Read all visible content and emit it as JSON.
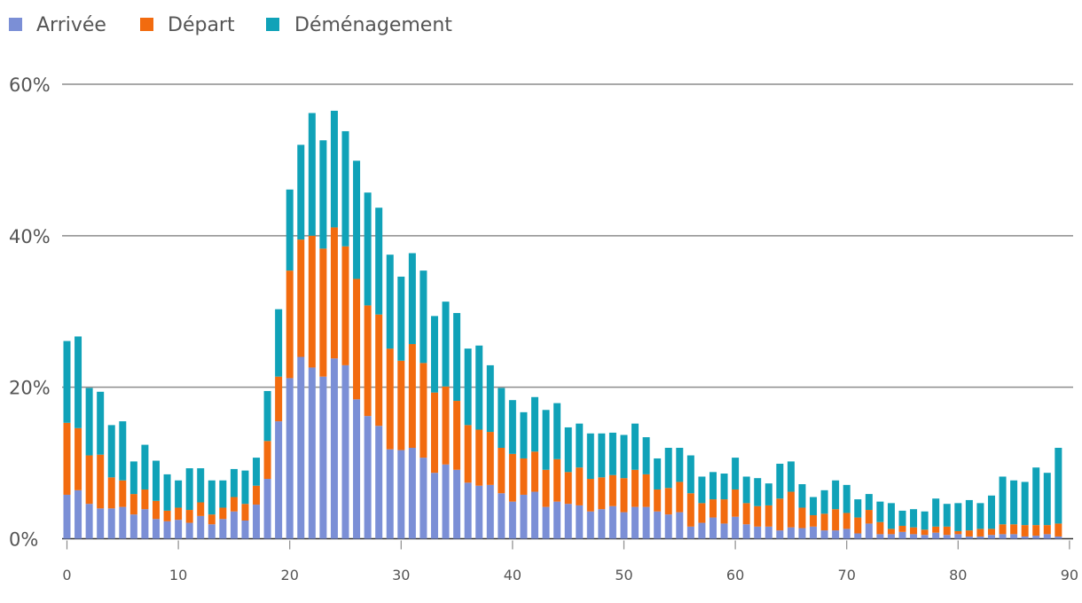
{
  "chart_data": {
    "type": "bar",
    "stacked": true,
    "title": "",
    "xlabel": "",
    "ylabel": "",
    "ylim": [
      0,
      60
    ],
    "y_ticks": [
      0,
      20,
      40,
      60
    ],
    "y_tick_labels": [
      "0%",
      "20%",
      "40%",
      "60%"
    ],
    "x_ticks": [
      0,
      10,
      20,
      30,
      40,
      50,
      60,
      70,
      80,
      90
    ],
    "x_tick_labels": [
      "0",
      "10",
      "20",
      "30",
      "40",
      "50",
      "60",
      "70",
      "80",
      "90"
    ],
    "legend_position": "top-left",
    "series": [
      {
        "name": "Arrivée",
        "color": "#7b8fd6",
        "values": [
          5.8,
          6.4,
          4.6,
          4.0,
          4.0,
          4.2,
          3.2,
          3.9,
          2.6,
          2.3,
          2.5,
          2.1,
          3.0,
          1.9,
          2.6,
          3.6,
          2.4,
          4.5,
          7.9,
          15.5,
          21.2,
          24.0,
          22.6,
          21.4,
          23.8,
          22.9,
          18.4,
          16.2,
          14.9,
          11.8,
          11.7,
          12.0,
          10.7,
          8.7,
          9.8,
          9.1,
          7.4,
          7.0,
          7.1,
          6.0,
          4.9,
          5.8,
          6.2,
          4.2,
          4.9,
          4.6,
          4.4,
          3.6,
          3.9,
          4.3,
          3.5,
          4.2,
          4.2,
          3.6,
          3.2,
          3.5,
          1.6,
          2.1,
          2.8,
          2.0,
          2.9,
          1.9,
          1.6,
          1.6,
          1.1,
          1.5,
          1.4,
          1.6,
          1.1,
          1.1,
          1.3,
          0.7,
          2.0,
          0.6,
          0.6,
          0.9,
          0.6,
          0.5,
          0.8,
          0.5,
          0.6,
          0.3,
          0.3,
          0.5,
          0.6,
          0.6,
          0.3,
          0.4,
          0.6,
          0.3
        ]
      },
      {
        "name": "Départ",
        "color": "#f26b0f",
        "values": [
          9.5,
          8.2,
          6.4,
          7.1,
          4.1,
          3.5,
          2.7,
          2.6,
          2.4,
          1.4,
          1.6,
          1.7,
          1.8,
          1.3,
          1.5,
          1.9,
          2.2,
          2.5,
          5.0,
          5.9,
          14.2,
          15.5,
          17.4,
          16.9,
          17.3,
          15.7,
          15.9,
          14.6,
          14.7,
          13.3,
          11.8,
          13.7,
          12.5,
          10.6,
          10.3,
          9.1,
          7.6,
          7.4,
          7.0,
          6.0,
          6.3,
          4.8,
          5.3,
          4.9,
          5.6,
          4.2,
          5.0,
          4.3,
          4.2,
          4.1,
          4.5,
          4.9,
          4.3,
          2.9,
          3.5,
          4.0,
          4.4,
          2.6,
          2.4,
          3.2,
          3.6,
          2.8,
          2.7,
          2.8,
          4.2,
          4.7,
          2.7,
          1.5,
          2.2,
          2.8,
          2.1,
          2.1,
          1.8,
          1.6,
          0.7,
          0.8,
          0.9,
          0.7,
          0.8,
          1.1,
          0.4,
          0.8,
          1.0,
          0.8,
          1.3,
          1.3,
          1.5,
          1.4,
          1.2,
          1.7
        ]
      },
      {
        "name": "Déménagement",
        "color": "#10a2b8",
        "values": [
          10.8,
          12.1,
          8.9,
          8.3,
          6.9,
          7.8,
          4.3,
          5.9,
          5.3,
          4.8,
          3.6,
          5.5,
          4.5,
          4.5,
          3.6,
          3.7,
          4.4,
          3.7,
          6.6,
          8.9,
          10.7,
          12.5,
          16.2,
          14.3,
          15.4,
          15.2,
          15.6,
          14.9,
          14.1,
          12.4,
          11.1,
          12.0,
          12.2,
          10.1,
          11.2,
          11.6,
          10.1,
          11.1,
          8.8,
          7.9,
          7.1,
          6.1,
          7.2,
          7.9,
          7.4,
          5.9,
          5.8,
          6.0,
          5.8,
          5.6,
          5.7,
          6.1,
          4.9,
          4.1,
          5.3,
          4.5,
          5.0,
          3.5,
          3.6,
          3.4,
          4.2,
          3.5,
          3.7,
          2.9,
          4.6,
          4.0,
          3.1,
          2.4,
          3.1,
          3.8,
          3.7,
          2.4,
          2.1,
          2.7,
          3.4,
          2.0,
          2.4,
          2.4,
          3.7,
          3.0,
          3.7,
          4.0,
          3.4,
          4.4,
          6.3,
          5.8,
          5.7,
          7.6,
          6.9,
          10.0
        ]
      }
    ]
  }
}
